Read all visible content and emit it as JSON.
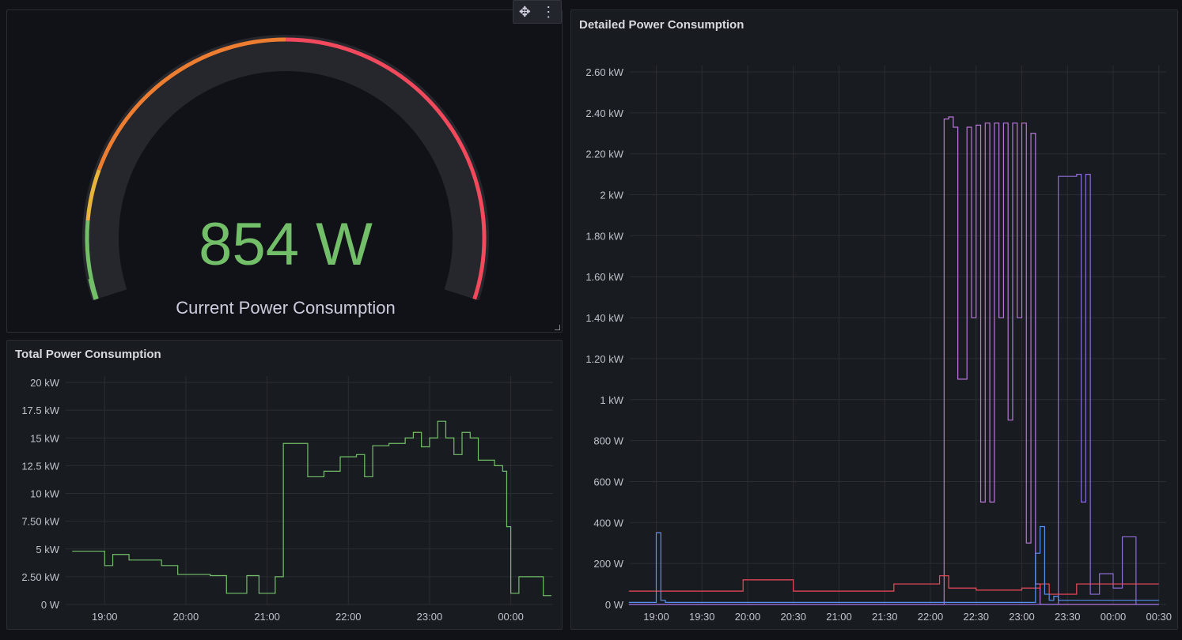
{
  "gauge_panel": {
    "value_text": "854 W",
    "label": "Current Power Consumption",
    "value": 854,
    "colors": {
      "green": "#73bf69",
      "yellow": "#e8b53a",
      "orange": "#ed7d31",
      "red": "#f2495c",
      "track": "#25272d"
    }
  },
  "menu": {
    "move_icon": "move-icon",
    "more_icon": "more-vertical-icon"
  },
  "chart_data": [
    {
      "type": "line",
      "title": "Total Power Consumption",
      "y_ticks": [
        "0 W",
        "2.50 kW",
        "5 kW",
        "7.50 kW",
        "10 kW",
        "12.5 kW",
        "15 kW",
        "17.5 kW",
        "20 kW"
      ],
      "x_ticks": [
        "19:00",
        "20:00",
        "21:00",
        "22:00",
        "23:00",
        "00:00"
      ],
      "ylim": [
        0,
        20
      ],
      "color": "#73bf69",
      "series": [
        {
          "x_hours": [
            18.6,
            18.9,
            19.0,
            19.1,
            19.2,
            19.3,
            19.5,
            19.7,
            19.9,
            20.1,
            20.3,
            20.5,
            20.75,
            20.9,
            21.0,
            21.1,
            21.2,
            21.3,
            21.5,
            21.7,
            21.9,
            22.1,
            22.2,
            22.3,
            22.5,
            22.7,
            22.8,
            22.9,
            23.0,
            23.1,
            23.2,
            23.3,
            23.4,
            23.5,
            23.6,
            23.7,
            23.8,
            23.9,
            23.95,
            24.0,
            24.1,
            24.2,
            24.4,
            24.5
          ],
          "y_kw": [
            4.8,
            4.8,
            3.5,
            4.5,
            4.5,
            4.0,
            4.0,
            3.5,
            2.7,
            2.7,
            2.6,
            1.0,
            2.6,
            1.0,
            1.0,
            2.5,
            14.5,
            14.5,
            11.5,
            12.0,
            13.3,
            13.5,
            11.5,
            14.3,
            14.5,
            15.0,
            15.5,
            14.2,
            15.0,
            16.5,
            15.0,
            13.5,
            15.5,
            15.0,
            13.0,
            13.0,
            12.5,
            12.0,
            7.0,
            1.0,
            2.5,
            2.5,
            0.8,
            0.8
          ]
        }
      ]
    },
    {
      "type": "line",
      "title": "Detailed Power Consumption",
      "y_ticks": [
        "0 W",
        "200 W",
        "400 W",
        "600 W",
        "800 W",
        "1 kW",
        "1.20 kW",
        "1.40 kW",
        "1.60 kW",
        "1.80 kW",
        "2 kW",
        "2.20 kW",
        "2.40 kW",
        "2.60 kW"
      ],
      "x_ticks": [
        "19:00",
        "19:30",
        "20:00",
        "20:30",
        "21:00",
        "21:30",
        "22:00",
        "22:30",
        "23:00",
        "23:30",
        "00:00",
        "00:30"
      ],
      "ylim": [
        0,
        2.6
      ],
      "series": [
        {
          "color": "#b877d9",
          "x_hours": [
            18.7,
            22.0,
            22.15,
            22.2,
            22.25,
            22.3,
            22.4,
            22.45,
            22.5,
            22.55,
            22.6,
            22.65,
            22.7,
            22.75,
            22.8,
            22.85,
            22.9,
            22.95,
            23.0,
            23.05,
            23.1,
            23.15,
            23.2,
            23.25,
            23.3,
            23.35,
            23.4,
            24.5
          ],
          "y_kw": [
            0.0,
            0.0,
            2.37,
            2.38,
            2.33,
            1.1,
            2.33,
            1.4,
            2.34,
            0.5,
            2.35,
            0.5,
            2.35,
            1.4,
            2.35,
            0.9,
            2.35,
            1.4,
            2.35,
            0.3,
            2.3,
            0.1,
            0.0,
            0.0,
            0.0,
            0.0,
            0.0,
            0.0
          ]
        },
        {
          "color": "#8f6ed8",
          "x_hours": [
            18.7,
            23.35,
            23.4,
            23.6,
            23.65,
            23.7,
            23.75,
            23.85,
            24.0,
            24.1,
            24.2,
            24.25,
            24.3,
            24.5
          ],
          "y_kw": [
            0.0,
            0.0,
            2.09,
            2.1,
            0.5,
            2.1,
            0.05,
            0.15,
            0.08,
            0.33,
            0.33,
            0.0,
            0.0,
            0.0
          ]
        },
        {
          "color": "#f2495c",
          "x_hours": [
            18.7,
            19.9,
            19.95,
            20.5,
            21.5,
            21.6,
            22.0,
            22.1,
            22.2,
            22.5,
            23.0,
            23.2,
            23.3,
            23.6,
            24.0,
            24.5
          ],
          "y_kw": [
            0.065,
            0.065,
            0.12,
            0.065,
            0.065,
            0.1,
            0.1,
            0.14,
            0.08,
            0.07,
            0.08,
            0.1,
            0.05,
            0.1,
            0.1,
            0.1
          ]
        },
        {
          "color": "#5794f2",
          "x_hours": [
            18.7,
            18.95,
            19.0,
            19.05,
            19.1,
            23.1,
            23.15,
            23.2,
            23.25,
            23.3,
            23.35,
            23.4,
            23.5,
            24.5
          ],
          "y_kw": [
            0.01,
            0.01,
            0.35,
            0.02,
            0.01,
            0.01,
            0.25,
            0.38,
            0.05,
            0.02,
            0.04,
            0.02,
            0.02,
            0.02
          ]
        }
      ]
    }
  ]
}
